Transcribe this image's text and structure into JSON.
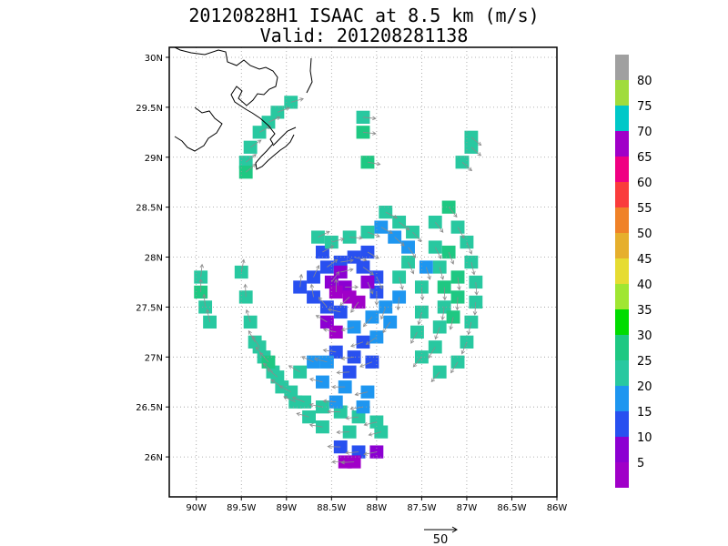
{
  "chart_data": {
    "type": "heatmap",
    "title": "20120828H1 ISAAC at 8.5 km (m/s)",
    "subtitle": "Valid: 201208281138",
    "x_ticks": [
      "90W",
      "89.5W",
      "89W",
      "88.5W",
      "88W",
      "87.5W",
      "87W",
      "86.5W",
      "86W"
    ],
    "y_ticks": [
      "30N",
      "29.5N",
      "29N",
      "28.5N",
      "28N",
      "27.5N",
      "27N",
      "26.5N",
      "26N"
    ],
    "xlim": [
      -90.3,
      -86.0
    ],
    "ylim": [
      25.6,
      30.1
    ],
    "grid": true,
    "colorbar": {
      "labels": [
        "80",
        "75",
        "70",
        "65",
        "60",
        "55",
        "50",
        "45",
        "40",
        "35",
        "30",
        "25",
        "20",
        "15",
        "10",
        "5"
      ],
      "colors": [
        "#a0a0a0",
        "#a0dc3c",
        "#00c8c8",
        "#a000c8",
        "#f00082",
        "#fa3c3c",
        "#f08228",
        "#e6af2d",
        "#e6dc32",
        "#a0e632",
        "#00dc00",
        "#1ec882",
        "#28c8a0",
        "#1e96f0",
        "#2850f0",
        "#8c00d2",
        "#a000c8"
      ]
    },
    "reference_vector": {
      "value": "50"
    },
    "cells": [
      [
        -88.95,
        29.55,
        "25"
      ],
      [
        -89.1,
        29.45,
        "25"
      ],
      [
        -89.2,
        29.35,
        "25"
      ],
      [
        -89.3,
        29.25,
        "25"
      ],
      [
        -89.4,
        29.1,
        "25"
      ],
      [
        -89.45,
        28.95,
        "25"
      ],
      [
        -89.45,
        28.85,
        "30"
      ],
      [
        -88.15,
        29.4,
        "25"
      ],
      [
        -88.15,
        29.25,
        "30"
      ],
      [
        -88.1,
        28.95,
        "30"
      ],
      [
        -86.95,
        29.1,
        "25"
      ],
      [
        -86.95,
        29.2,
        "25"
      ],
      [
        -87.05,
        28.95,
        "25"
      ],
      [
        -89.95,
        27.8,
        "25"
      ],
      [
        -89.95,
        27.65,
        "30"
      ],
      [
        -89.9,
        27.5,
        "25"
      ],
      [
        -89.85,
        27.35,
        "25"
      ],
      [
        -89.5,
        27.85,
        "25"
      ],
      [
        -89.45,
        27.6,
        "25"
      ],
      [
        -89.4,
        27.35,
        "25"
      ],
      [
        -89.35,
        27.15,
        "25"
      ],
      [
        -89.25,
        27.0,
        "25"
      ],
      [
        -89.15,
        26.85,
        "25"
      ],
      [
        -89.05,
        26.7,
        "25"
      ],
      [
        -88.9,
        26.55,
        "25"
      ],
      [
        -88.75,
        26.4,
        "25"
      ],
      [
        -88.6,
        26.3,
        "25"
      ],
      [
        -89.3,
        27.1,
        "25"
      ],
      [
        -89.2,
        26.95,
        "30"
      ],
      [
        -89.1,
        26.8,
        "25"
      ],
      [
        -88.95,
        26.65,
        "25"
      ],
      [
        -88.8,
        26.55,
        "25"
      ],
      [
        -88.6,
        26.5,
        "25"
      ],
      [
        -88.4,
        26.45,
        "25"
      ],
      [
        -88.2,
        26.4,
        "25"
      ],
      [
        -88.0,
        26.35,
        "25"
      ],
      [
        -87.95,
        26.25,
        "25"
      ],
      [
        -88.3,
        26.25,
        "25"
      ],
      [
        -88.6,
        26.75,
        "20"
      ],
      [
        -88.35,
        26.7,
        "20"
      ],
      [
        -88.1,
        26.65,
        "20"
      ],
      [
        -88.45,
        26.55,
        "20"
      ],
      [
        -88.15,
        26.5,
        "20"
      ],
      [
        -88.4,
        26.1,
        "15"
      ],
      [
        -88.2,
        26.05,
        "15"
      ],
      [
        -88.0,
        26.05,
        "10"
      ],
      [
        -88.25,
        25.95,
        "5"
      ],
      [
        -88.35,
        25.95,
        "5"
      ],
      [
        -88.45,
        27.05,
        "15"
      ],
      [
        -88.25,
        27.0,
        "15"
      ],
      [
        -88.05,
        26.95,
        "15"
      ],
      [
        -88.3,
        26.85,
        "15"
      ],
      [
        -88.7,
        27.8,
        "15"
      ],
      [
        -88.55,
        27.9,
        "15"
      ],
      [
        -88.4,
        27.95,
        "15"
      ],
      [
        -88.25,
        28.0,
        "15"
      ],
      [
        -88.1,
        28.05,
        "15"
      ],
      [
        -88.85,
        27.7,
        "15"
      ],
      [
        -88.7,
        27.6,
        "15"
      ],
      [
        -88.55,
        27.5,
        "15"
      ],
      [
        -88.4,
        27.45,
        "15"
      ],
      [
        -88.6,
        28.05,
        "15"
      ],
      [
        -88.15,
        27.9,
        "15"
      ],
      [
        -88.0,
        27.8,
        "15"
      ],
      [
        -88.0,
        27.65,
        "15"
      ],
      [
        -88.5,
        27.75,
        "10"
      ],
      [
        -88.35,
        27.7,
        "10"
      ],
      [
        -88.4,
        27.85,
        "10"
      ],
      [
        -88.1,
        27.75,
        "10"
      ],
      [
        -88.55,
        27.35,
        "10"
      ],
      [
        -88.45,
        27.65,
        "5"
      ],
      [
        -88.3,
        27.6,
        "5"
      ],
      [
        -88.45,
        27.25,
        "5"
      ],
      [
        -88.2,
        27.55,
        "5"
      ],
      [
        -88.25,
        27.3,
        "20"
      ],
      [
        -88.05,
        27.4,
        "20"
      ],
      [
        -87.9,
        27.5,
        "20"
      ],
      [
        -87.75,
        27.6,
        "20"
      ],
      [
        -88.0,
        27.2,
        "20"
      ],
      [
        -87.85,
        27.35,
        "20"
      ],
      [
        -87.95,
        28.3,
        "20"
      ],
      [
        -87.8,
        28.2,
        "20"
      ],
      [
        -87.65,
        28.1,
        "20"
      ],
      [
        -87.9,
        28.45,
        "25"
      ],
      [
        -87.75,
        28.35,
        "25"
      ],
      [
        -87.6,
        28.25,
        "25"
      ],
      [
        -87.65,
        27.95,
        "25"
      ],
      [
        -87.75,
        27.8,
        "25"
      ],
      [
        -88.1,
        28.25,
        "25"
      ],
      [
        -88.3,
        28.2,
        "25"
      ],
      [
        -88.5,
        28.15,
        "25"
      ],
      [
        -88.65,
        28.2,
        "25"
      ],
      [
        -87.35,
        28.35,
        "25"
      ],
      [
        -87.2,
        28.5,
        "30"
      ],
      [
        -87.1,
        28.3,
        "25"
      ],
      [
        -87.0,
        28.15,
        "25"
      ],
      [
        -86.95,
        27.95,
        "25"
      ],
      [
        -86.9,
        27.75,
        "25"
      ],
      [
        -86.9,
        27.55,
        "25"
      ],
      [
        -86.95,
        27.35,
        "25"
      ],
      [
        -87.0,
        27.15,
        "25"
      ],
      [
        -87.1,
        26.95,
        "25"
      ],
      [
        -87.3,
        26.85,
        "25"
      ],
      [
        -87.35,
        28.1,
        "25"
      ],
      [
        -87.3,
        27.9,
        "25"
      ],
      [
        -87.25,
        27.7,
        "30"
      ],
      [
        -87.25,
        27.5,
        "25"
      ],
      [
        -87.3,
        27.3,
        "25"
      ],
      [
        -87.35,
        27.1,
        "25"
      ],
      [
        -87.5,
        27.0,
        "25"
      ],
      [
        -87.5,
        27.45,
        "25"
      ],
      [
        -87.5,
        27.7,
        "25"
      ],
      [
        -87.55,
        27.25,
        "25"
      ],
      [
        -87.2,
        28.05,
        "30"
      ],
      [
        -87.1,
        27.8,
        "30"
      ],
      [
        -87.1,
        27.6,
        "30"
      ],
      [
        -87.15,
        27.4,
        "30"
      ],
      [
        -87.45,
        27.9,
        "20"
      ],
      [
        -88.7,
        26.95,
        "20"
      ],
      [
        -88.85,
        26.85,
        "25"
      ],
      [
        -88.55,
        26.95,
        "20"
      ],
      [
        -88.15,
        27.15,
        "15"
      ]
    ]
  }
}
